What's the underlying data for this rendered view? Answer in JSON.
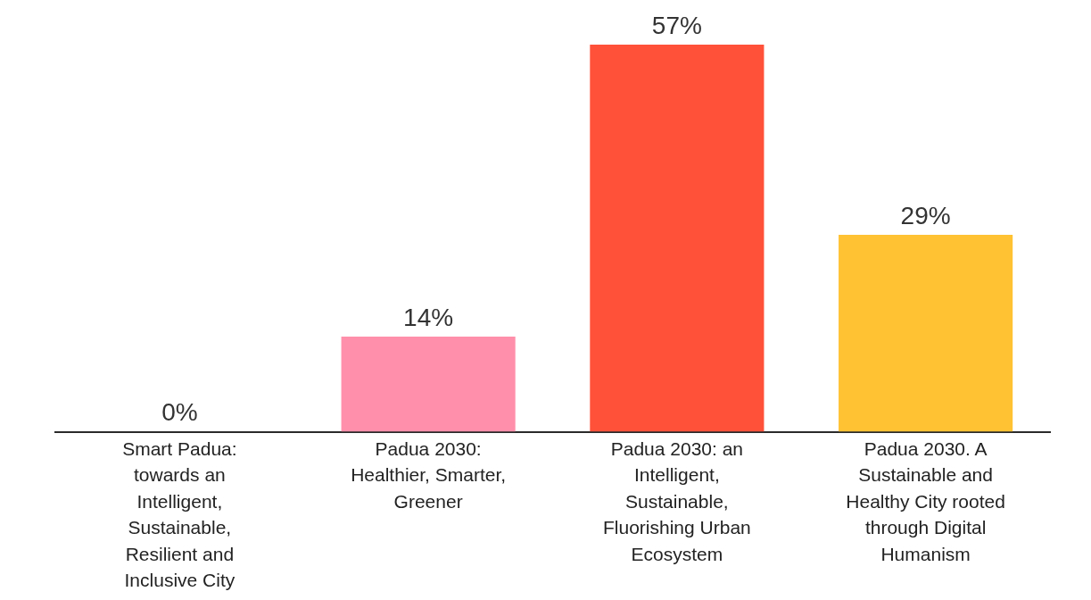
{
  "chart_data": {
    "type": "bar",
    "categories": [
      "Smart Padua: towards an Intelligent, Sustainable, Resilient and Inclusive City",
      "Padua 2030: Healthier, Smarter, Greener",
      "Padua 2030: an Intelligent, Sustainable, Fluorishing Urban Ecosystem",
      "Padua 2030. A Sustainable and Healthy City rooted through Digital Humanism"
    ],
    "values": [
      0,
      14,
      57,
      29
    ],
    "colors": [
      "#ff8fab",
      "#ff8fab",
      "#ff513a",
      "#ffc233"
    ],
    "value_labels": [
      "0%",
      "14%",
      "57%",
      "29%"
    ],
    "grid": false,
    "legend": false
  }
}
